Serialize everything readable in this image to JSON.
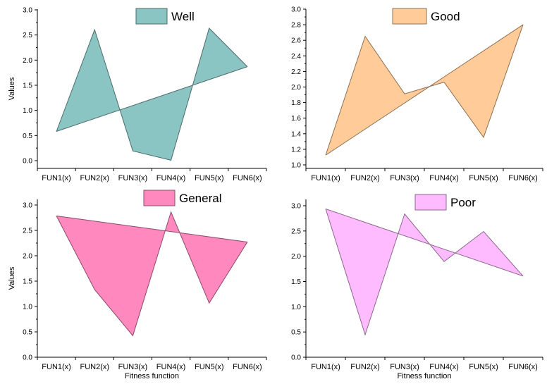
{
  "chart_data": [
    {
      "type": "area",
      "legend": "Well",
      "color": "#8ac4c3",
      "ylabel": "Values",
      "xlabel": "",
      "categories": [
        "FUN1(x)",
        "FUN2(x)",
        "FUN3(x)",
        "FUN4(x)",
        "FUN5(x)",
        "FUN6(x)"
      ],
      "series": [
        {
          "values": [
            0.62,
            2.6,
            0.24,
            0.06,
            2.63,
            1.88
          ]
        }
      ],
      "ylim": [
        -0.1,
        3.0
      ],
      "yticks": [
        "0.0",
        "0.5",
        "1.0",
        "1.5",
        "2.0",
        "2.5",
        "3.0"
      ],
      "closing_line": "first-to-last"
    },
    {
      "type": "area",
      "legend": "Good",
      "color": "#ffcc99",
      "ylabel": "",
      "xlabel": "",
      "categories": [
        "FUN1(x)",
        "FUN2(x)",
        "FUN3(x)",
        "FUN4(x)",
        "FUN5(x)",
        "FUN6(x)"
      ],
      "series": [
        {
          "values": [
            1.12,
            2.65,
            1.91,
            2.06,
            1.35,
            2.8
          ]
        }
      ],
      "ylim": [
        0.95,
        3.0
      ],
      "yticks": [
        "1.0",
        "1.2",
        "1.4",
        "1.6",
        "1.8",
        "2.0",
        "2.2",
        "2.4",
        "2.6",
        "2.8",
        "3.0"
      ],
      "closing_line": "first-to-last"
    },
    {
      "type": "area",
      "legend": "General",
      "color": "#ff88bf",
      "ylabel": "Values",
      "xlabel": "Fitness function",
      "categories": [
        "FUN1(x)",
        "FUN2(x)",
        "FUN3(x)",
        "FUN4(x)",
        "FUN5(x)",
        "FUN6(x)"
      ],
      "series": [
        {
          "values": [
            2.82,
            1.35,
            0.43,
            2.9,
            1.08,
            2.3
          ]
        }
      ],
      "ylim": [
        0.0,
        3.15
      ],
      "yticks": [
        "0.0",
        "0.5",
        "1.0",
        "1.5",
        "2.0",
        "2.5",
        "3.0"
      ],
      "closing_line": "first-to-last"
    },
    {
      "type": "area",
      "legend": "Poor",
      "color": "#ffbbff",
      "ylabel": "",
      "xlabel": "Fitness function",
      "categories": [
        "FUN1(x)",
        "FUN2(x)",
        "FUN3(x)",
        "FUN4(x)",
        "FUN5(x)",
        "FUN6(x)"
      ],
      "series": [
        {
          "values": [
            2.96,
            0.45,
            2.86,
            1.91,
            2.51,
            1.62
          ]
        }
      ],
      "ylim": [
        0.0,
        3.15
      ],
      "yticks": [
        "0.0",
        "0.5",
        "1.0",
        "1.5",
        "2.0",
        "2.5",
        "3.0"
      ],
      "closing_line": "first-to-last"
    }
  ]
}
